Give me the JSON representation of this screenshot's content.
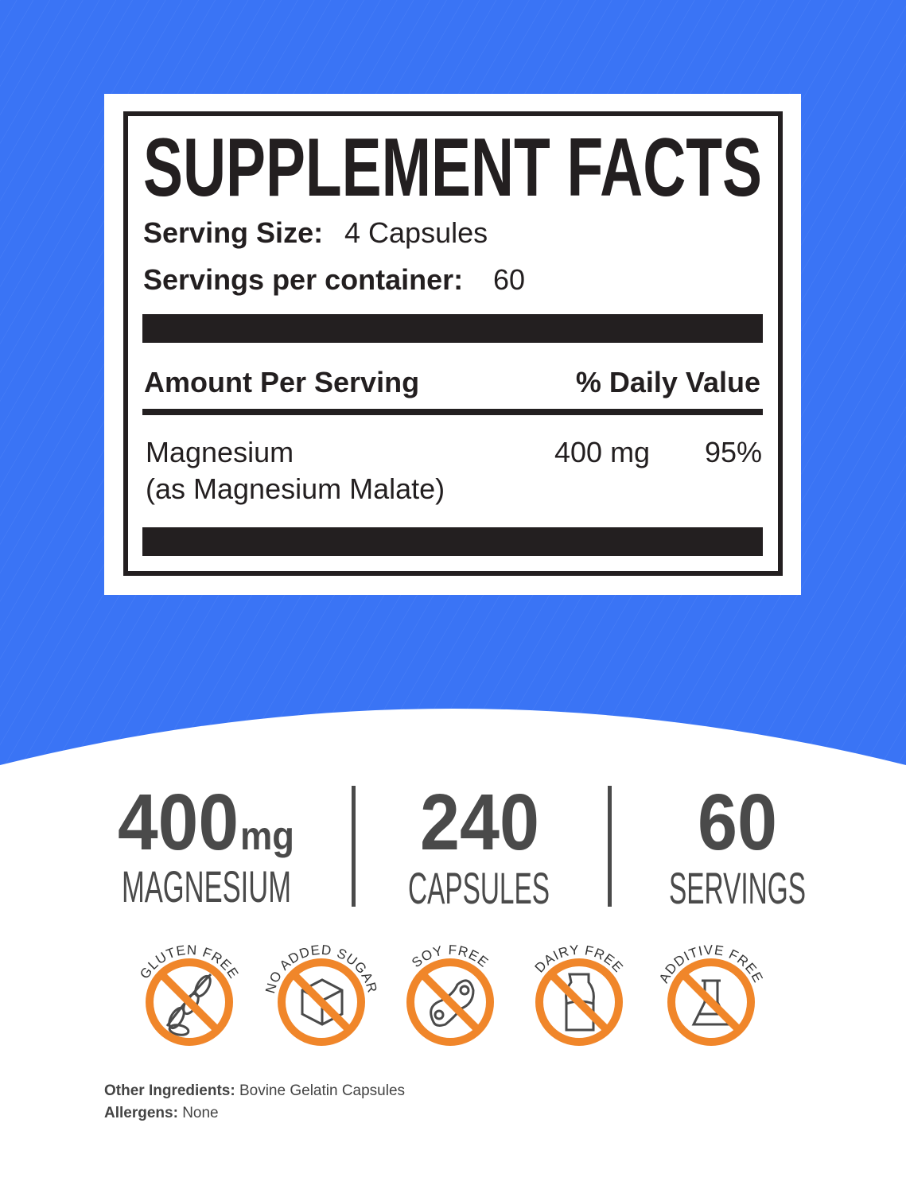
{
  "colors": {
    "background_blue": "#3a74f5",
    "text_dark": "#231f20",
    "stat_gray": "#4a4a4a",
    "badge_orange": "#f0862a",
    "icon_gray": "#4a4a4a"
  },
  "facts": {
    "title": "SUPPLEMENT FACTS",
    "serving_size_label": "Serving Size:",
    "serving_size_value": "4 Capsules",
    "servings_label": "Servings per container:",
    "servings_value": "60",
    "amount_header": "Amount Per Serving",
    "dv_header": "% Daily Value",
    "ingredient_name": "Magnesium",
    "ingredient_form": "(as Magnesium Malate)",
    "ingredient_amount": "400 mg",
    "ingredient_dv": "95%"
  },
  "stats": [
    {
      "value": "400",
      "unit": "mg",
      "label": "MAGNESIUM"
    },
    {
      "value": "240",
      "label": "CAPSULES"
    },
    {
      "value": "60",
      "label": "SERVINGS"
    }
  ],
  "badges": [
    {
      "label": "GLUTEN FREE",
      "icon": "wheat-icon"
    },
    {
      "label": "NO ADDED SUGAR",
      "icon": "sugar-cube-icon"
    },
    {
      "label": "SOY FREE",
      "icon": "soybean-icon"
    },
    {
      "label": "DAIRY FREE",
      "icon": "milk-bottle-icon"
    },
    {
      "label": "ADDITIVE FREE",
      "icon": "flask-icon"
    }
  ],
  "footer": {
    "other_label": "Other Ingredients:",
    "other_value": "Bovine Gelatin Capsules",
    "allergens_label": "Allergens:",
    "allergens_value": "None"
  }
}
